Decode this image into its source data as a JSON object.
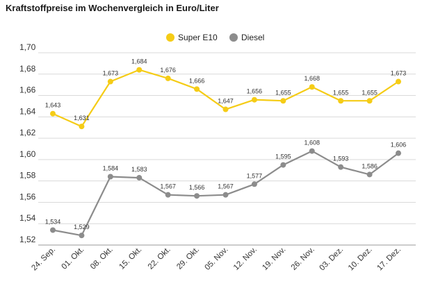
{
  "chart_data": {
    "type": "line",
    "title": "Kraftstoffpreise im Wochenvergleich in Euro/Liter",
    "categories": [
      "24. Sep.",
      "01. Okt.",
      "08. Okt.",
      "15. Okt.",
      "22. Okt.",
      "29. Okt.",
      "05. Nov.",
      "12. Nov.",
      "19. Nov.",
      "26. Nov.",
      "03. Dez.",
      "10. Dez.",
      "17. Dez."
    ],
    "series": [
      {
        "name": "Super E10",
        "color": "#f5cc16",
        "values": [
          1.643,
          1.631,
          1.673,
          1.684,
          1.676,
          1.666,
          1.647,
          1.656,
          1.655,
          1.668,
          1.655,
          1.655,
          1.673
        ],
        "labels": [
          "1,643",
          "1,631",
          "1,673",
          "1,684",
          "1,676",
          "1,666",
          "1,647",
          "1,656",
          "1,655",
          "1,668",
          "1,655",
          "1,655",
          "1,673"
        ]
      },
      {
        "name": "Diesel",
        "color": "#8c8c8c",
        "values": [
          1.534,
          1.529,
          1.584,
          1.583,
          1.567,
          1.566,
          1.567,
          1.577,
          1.595,
          1.608,
          1.593,
          1.586,
          1.606
        ],
        "labels": [
          "1,534",
          "1,529",
          "1,584",
          "1,583",
          "1,567",
          "1,566",
          "1,567",
          "1,577",
          "1,595",
          "1,608",
          "1,593",
          "1,586",
          "1,606"
        ]
      }
    ],
    "yticks": [
      1.52,
      1.54,
      1.56,
      1.58,
      1.6,
      1.62,
      1.64,
      1.66,
      1.68,
      1.7
    ],
    "ytick_labels": [
      "1,52",
      "1,54",
      "1,56",
      "1,58",
      "1,60",
      "1,62",
      "1,64",
      "1,66",
      "1,68",
      "1,70"
    ],
    "ylim": [
      1.52,
      1.7
    ],
    "grid": true,
    "legend_position": "top-right"
  }
}
